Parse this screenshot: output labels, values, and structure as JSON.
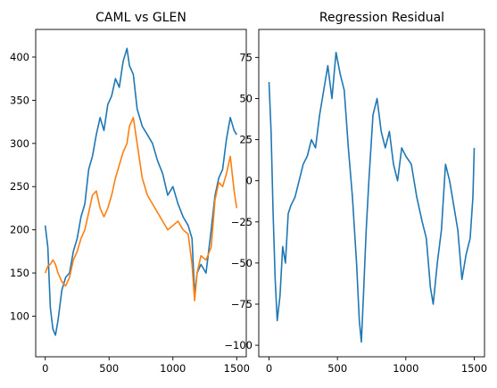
{
  "chart_data": [
    {
      "type": "line",
      "title": "CAML vs GLEN",
      "xlabel": "",
      "ylabel": "",
      "xlim": [
        -75,
        1575
      ],
      "ylim": [
        53,
        432
      ],
      "xticks": [
        0,
        500,
        1000,
        1500
      ],
      "yticks": [
        100,
        150,
        200,
        250,
        300,
        350,
        400
      ],
      "grid": false,
      "series": [
        {
          "color": "#1f77b4",
          "x": [
            0,
            20,
            40,
            60,
            80,
            100,
            130,
            160,
            190,
            220,
            250,
            280,
            310,
            340,
            370,
            400,
            430,
            460,
            490,
            520,
            550,
            580,
            610,
            640,
            660,
            690,
            720,
            760,
            800,
            840,
            880,
            920,
            960,
            1000,
            1040,
            1080,
            1120,
            1150,
            1170,
            1190,
            1220,
            1260,
            1300,
            1330,
            1360,
            1390,
            1420,
            1450,
            1480,
            1500
          ],
          "y": [
            205,
            180,
            110,
            85,
            78,
            95,
            130,
            145,
            150,
            175,
            190,
            215,
            230,
            270,
            285,
            310,
            330,
            315,
            345,
            355,
            375,
            365,
            395,
            410,
            390,
            380,
            340,
            320,
            310,
            300,
            280,
            265,
            240,
            250,
            230,
            215,
            205,
            190,
            125,
            150,
            160,
            150,
            200,
            240,
            260,
            270,
            305,
            330,
            315,
            310
          ]
        },
        {
          "color": "#ff7f0e",
          "x": [
            0,
            20,
            40,
            60,
            80,
            100,
            130,
            160,
            190,
            220,
            250,
            280,
            310,
            340,
            370,
            400,
            430,
            460,
            490,
            520,
            550,
            580,
            610,
            640,
            660,
            690,
            720,
            760,
            800,
            840,
            880,
            920,
            960,
            1000,
            1040,
            1080,
            1120,
            1150,
            1170,
            1190,
            1220,
            1260,
            1300,
            1330,
            1360,
            1390,
            1420,
            1450,
            1480,
            1500
          ],
          "y": [
            150,
            158,
            160,
            165,
            160,
            150,
            140,
            135,
            145,
            165,
            175,
            190,
            200,
            220,
            240,
            245,
            225,
            215,
            225,
            240,
            260,
            275,
            290,
            300,
            320,
            330,
            300,
            260,
            240,
            230,
            220,
            210,
            200,
            205,
            210,
            200,
            195,
            160,
            118,
            150,
            170,
            165,
            180,
            235,
            255,
            250,
            265,
            285,
            245,
            225
          ]
        }
      ]
    },
    {
      "type": "line",
      "title": "Regression Residual",
      "xlabel": "",
      "ylabel": "",
      "xlim": [
        -75,
        1575
      ],
      "ylim": [
        -107,
        92
      ],
      "xticks": [
        0,
        500,
        1000,
        1500
      ],
      "yticks": [
        -100,
        -75,
        -50,
        -25,
        0,
        25,
        50,
        75
      ],
      "grid": false,
      "series": [
        {
          "color": "#1f77b4",
          "x": [
            0,
            15,
            30,
            45,
            60,
            80,
            100,
            120,
            140,
            160,
            190,
            220,
            250,
            280,
            310,
            340,
            370,
            400,
            430,
            460,
            490,
            520,
            550,
            580,
            610,
            640,
            660,
            675,
            690,
            710,
            730,
            760,
            790,
            820,
            850,
            880,
            910,
            940,
            970,
            1000,
            1040,
            1080,
            1120,
            1150,
            1180,
            1200,
            1230,
            1260,
            1290,
            1320,
            1350,
            1380,
            1410,
            1440,
            1470,
            1490,
            1500
          ],
          "y": [
            60,
            30,
            -20,
            -60,
            -85,
            -70,
            -40,
            -50,
            -20,
            -15,
            -10,
            0,
            10,
            15,
            25,
            20,
            40,
            55,
            70,
            50,
            78,
            65,
            55,
            20,
            -10,
            -50,
            -85,
            -98,
            -70,
            -30,
            0,
            40,
            50,
            30,
            20,
            30,
            10,
            0,
            20,
            15,
            10,
            -10,
            -25,
            -35,
            -65,
            -75,
            -50,
            -30,
            10,
            0,
            -15,
            -30,
            -60,
            -45,
            -35,
            -10,
            20
          ]
        }
      ]
    }
  ]
}
